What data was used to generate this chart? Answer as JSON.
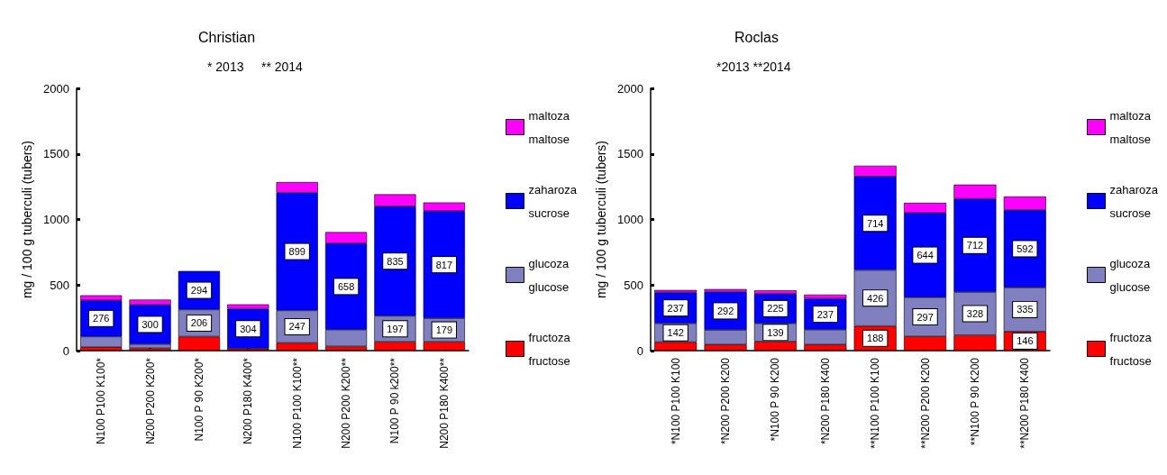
{
  "chart_data": [
    {
      "type": "bar",
      "title": "Christian",
      "subtitle": "* 2013     ** 2014",
      "ylabel": "mg / 100 g tuberculi (tubers)",
      "stacked": true,
      "legend": "right",
      "grid": false,
      "categories": [
        "N100 P100 K100*",
        "N200 P200 K200*",
        "N100 P 90 K200*",
        "N200 P180 K400*",
        "N100 P100 K100**",
        "N200 P200 K200**",
        "N100 P 90 k200**",
        "N200 P180 K400**"
      ],
      "ylim": [
        0,
        2000
      ],
      "yticks": [
        0,
        500,
        1000,
        1500,
        2000
      ],
      "series": [
        {
          "name": "fructoza\nfructose",
          "color": "#ff0000",
          "values": [
            27,
            18,
            107,
            15,
            59,
            32,
            68,
            68
          ],
          "value_labels": [
            null,
            null,
            null,
            null,
            null,
            null,
            null,
            null
          ]
        },
        {
          "name": "glucoza\nglucose",
          "color": "#8080c0",
          "values": [
            80,
            32,
            206,
            null,
            247,
            128,
            197,
            179
          ],
          "value_labels": [
            null,
            null,
            "206",
            null,
            "247",
            null,
            "197",
            "179"
          ]
        },
        {
          "name": "zaharoza\nsucrose",
          "color": "#0000ff",
          "values": [
            276,
            300,
            294,
            304,
            899,
            658,
            835,
            817
          ],
          "value_labels": [
            "276",
            "300",
            "294",
            "304",
            "899",
            "658",
            "835",
            "817"
          ]
        },
        {
          "name": "maltoza\nmaltose",
          "color": "#ff00ff",
          "values": [
            39,
            39,
            null,
            34,
            80,
            86,
            92,
            66
          ],
          "value_labels": [
            null,
            null,
            null,
            null,
            null,
            null,
            null,
            null
          ]
        }
      ]
    },
    {
      "type": "bar",
      "title": "Roclas",
      "subtitle": "*2013 **2014",
      "ylabel": "mg / 100 g tuberculi (tubers)",
      "stacked": true,
      "legend": "right",
      "grid": false,
      "categories": [
        "*N100 P100 K100",
        "*N200 P200 K200",
        "*N100 P 90 K200",
        "*N200 P180 K400",
        "**N100 P100 K100",
        "**N200 P200 K200",
        "**N100 P 90 K200",
        "**N200 P180 K400"
      ],
      "ylim": [
        0,
        2000
      ],
      "yticks": [
        0,
        500,
        1000,
        1500,
        2000
      ],
      "series": [
        {
          "name": "fructoza\nfructose",
          "color": "#ff0000",
          "values": [
            65,
            46,
            69,
            46,
            188,
            109,
            118,
            146
          ],
          "value_labels": [
            null,
            null,
            null,
            null,
            "188",
            null,
            null,
            "146"
          ]
        },
        {
          "name": "glucoza\nglucose",
          "color": "#8080c0",
          "values": [
            142,
            111,
            139,
            113,
            426,
            297,
            328,
            335
          ],
          "value_labels": [
            "142",
            null,
            "139",
            null,
            "426",
            "297",
            "328",
            "335"
          ]
        },
        {
          "name": "zaharoza\nsucrose",
          "color": "#0000ff",
          "values": [
            237,
            292,
            225,
            237,
            714,
            644,
            712,
            592
          ],
          "value_labels": [
            "237",
            "292",
            "225",
            "237",
            "714",
            "644",
            "712",
            "592"
          ]
        },
        {
          "name": "maltoza\nmaltose",
          "color": "#ff00ff",
          "values": [
            18,
            20,
            26,
            31,
            82,
            77,
            108,
            102
          ],
          "value_labels": [
            null,
            null,
            null,
            null,
            null,
            null,
            null,
            null
          ]
        }
      ]
    }
  ]
}
